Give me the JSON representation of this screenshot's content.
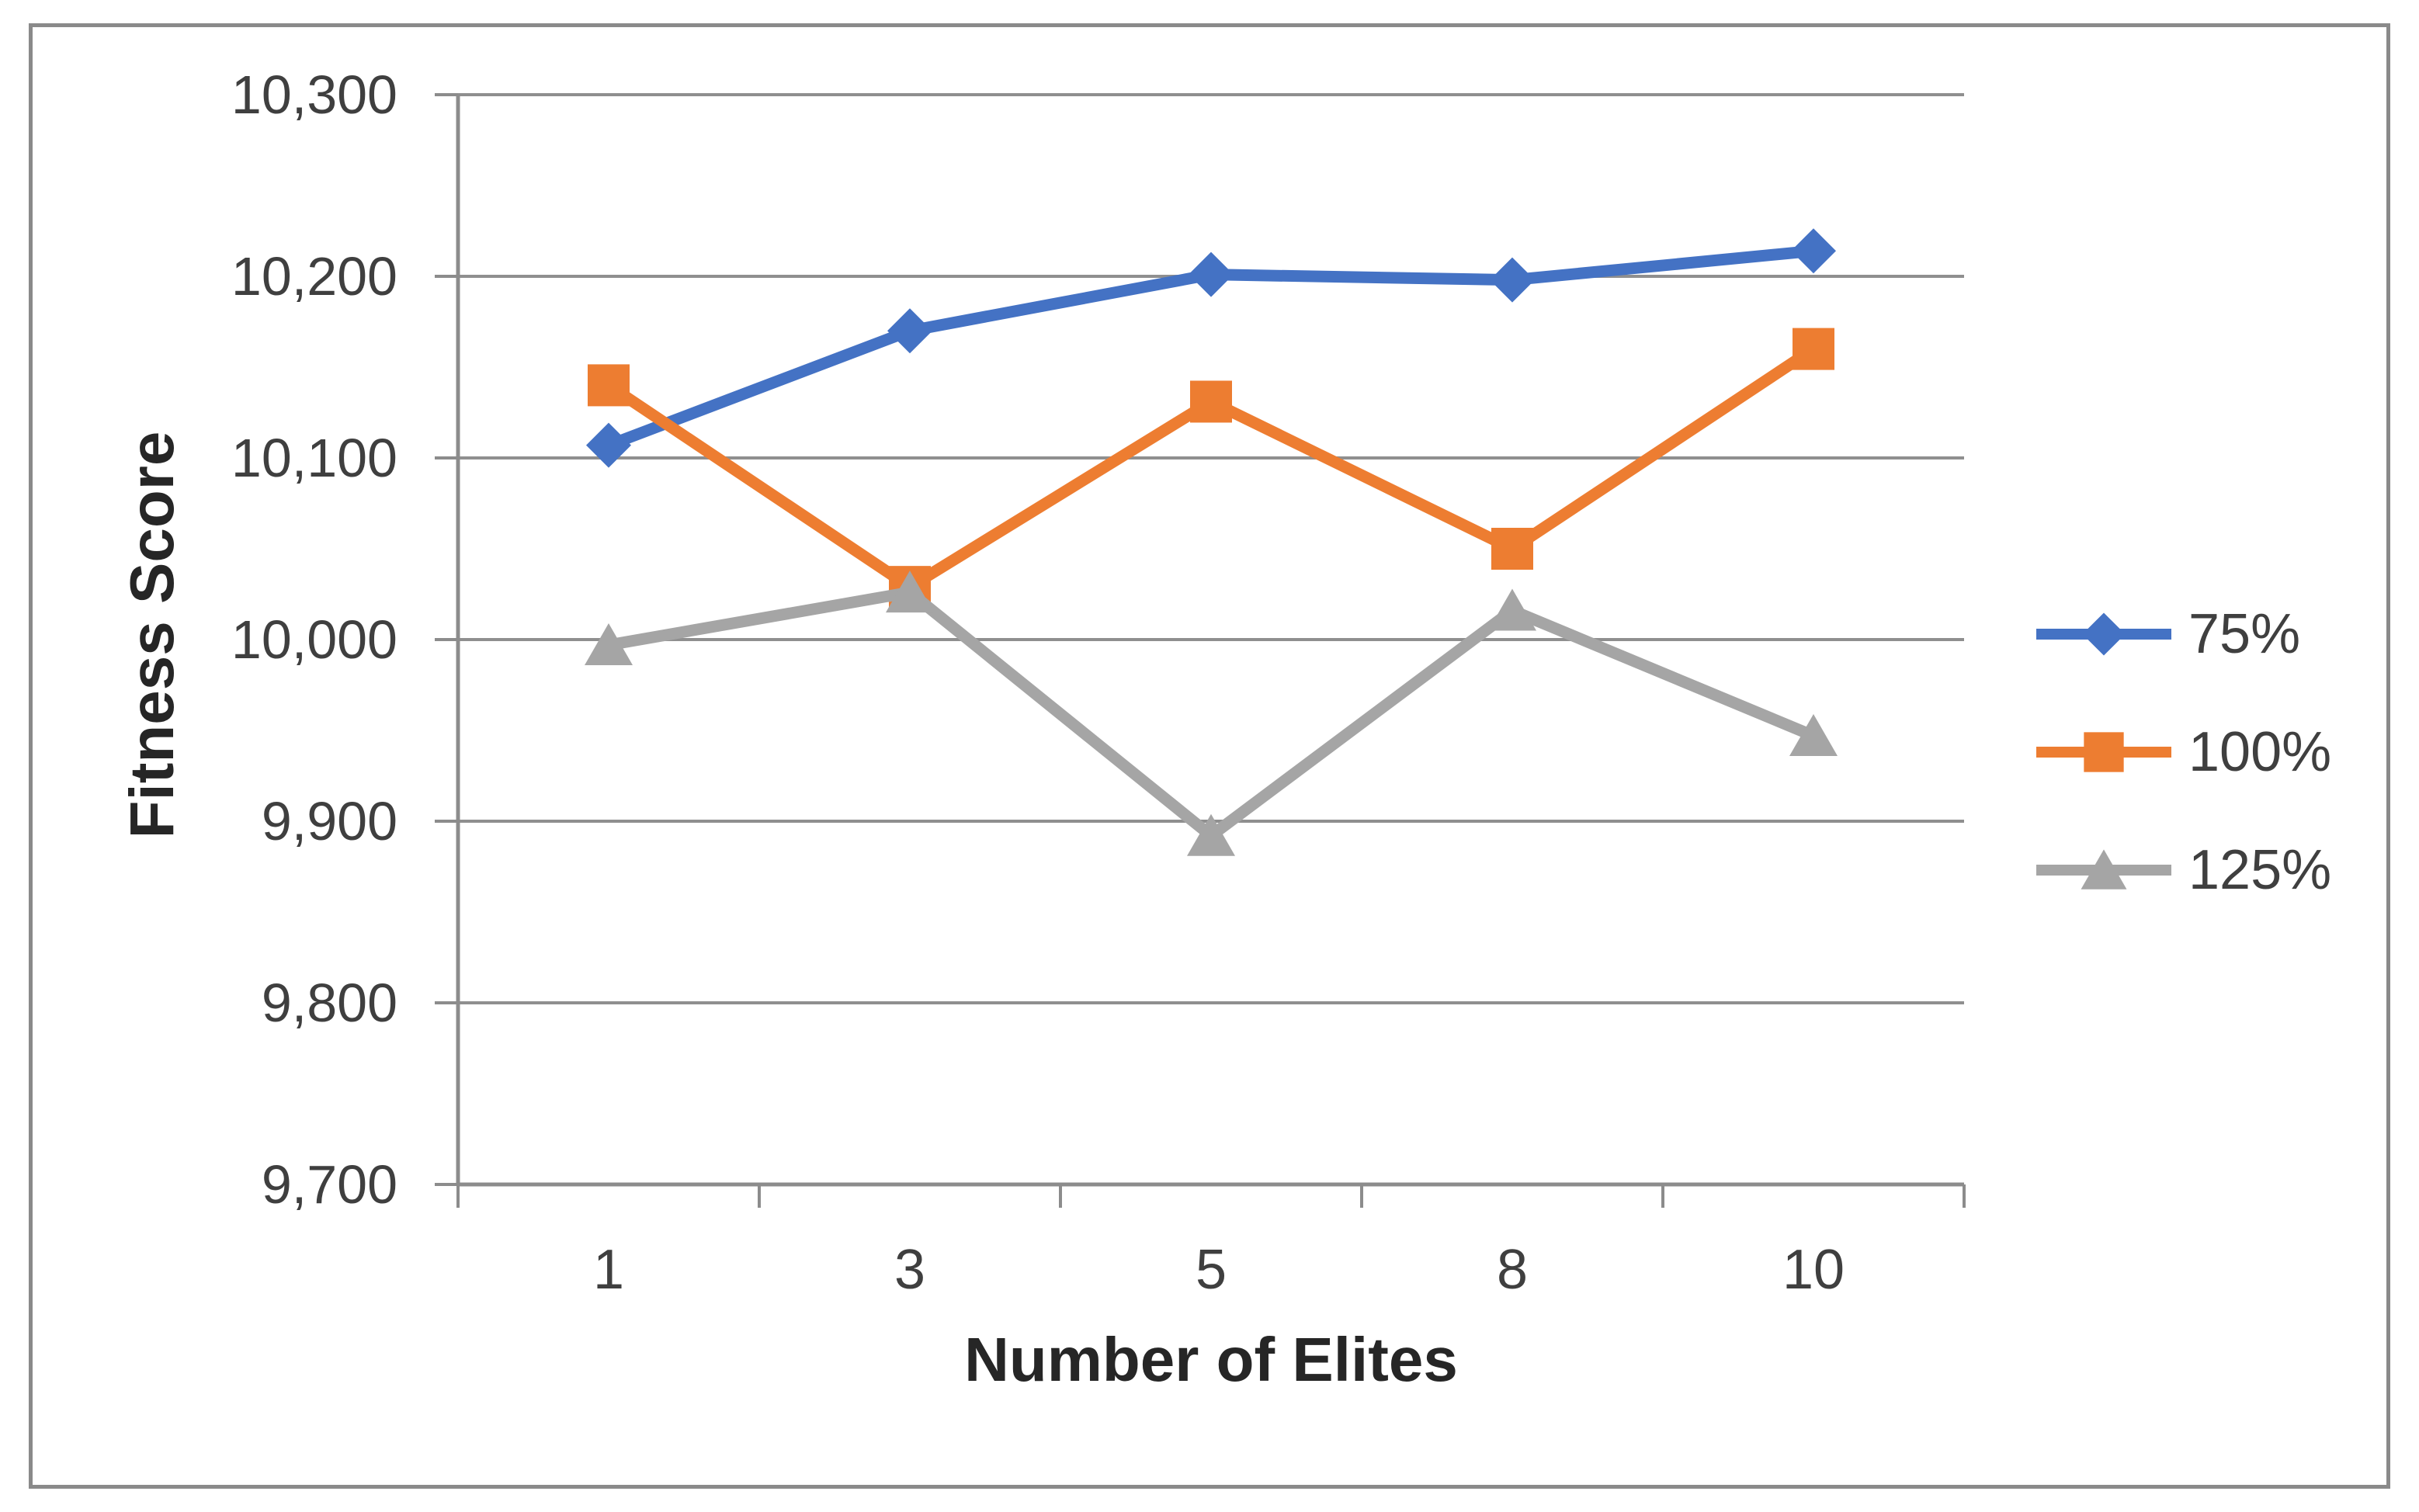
{
  "chart_data": {
    "type": "line",
    "title": "",
    "xlabel": "Number of Elites",
    "ylabel": "Fitness Score",
    "categories": [
      "1",
      "3",
      "5",
      "8",
      "10"
    ],
    "series": [
      {
        "name": "75%",
        "marker": "diamond",
        "color": "#4472C4",
        "values": [
          10107,
          10170,
          10201,
          10198,
          10214
        ]
      },
      {
        "name": "100%",
        "marker": "square",
        "color": "#ED7D31",
        "values": [
          10140,
          10029,
          10131,
          10050,
          10160
        ]
      },
      {
        "name": "125%",
        "marker": "triangle",
        "color": "#A5A5A5",
        "values": [
          9997,
          10026,
          9892,
          10016,
          9947
        ]
      }
    ],
    "ylim": [
      9700,
      10300
    ],
    "ytick_step": 100,
    "ytick_labels": [
      "10,300",
      "10,200",
      "10,100",
      "10,000",
      "9,900",
      "9,800",
      "9,700"
    ],
    "grid": "horizontal",
    "legend_position": "right",
    "axis_color": "#8c8c8c",
    "grid_color": "#8f8f8f",
    "text_color": "#3f3f3f"
  }
}
